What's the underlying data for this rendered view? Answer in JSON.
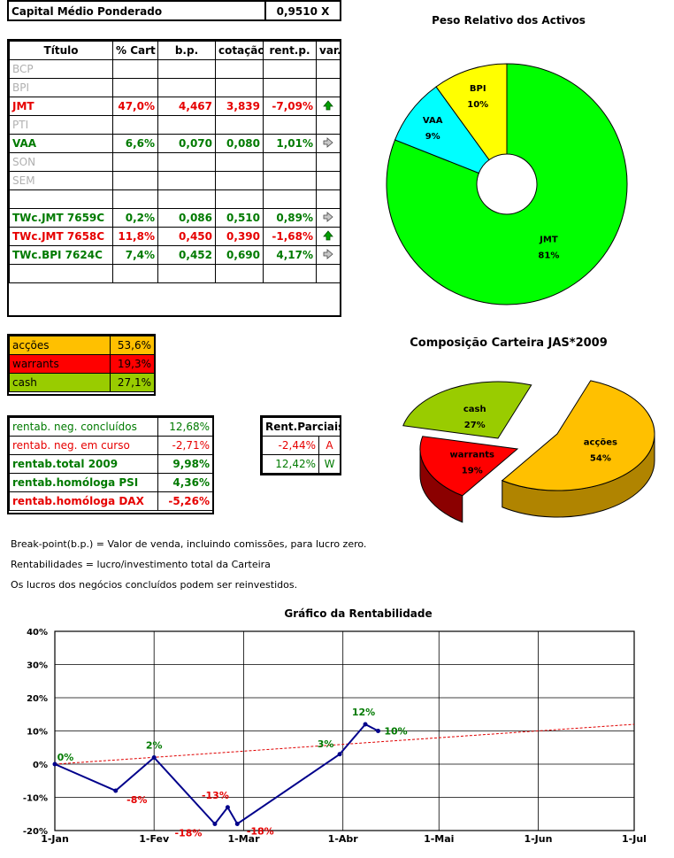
{
  "capital": {
    "label": "Capital Médio Ponderado",
    "value": "0,9510 X"
  },
  "holdings": {
    "headers": [
      "Título",
      "% Cart",
      "b.p.",
      "cotação",
      "rent.p.",
      "var."
    ],
    "rows": [
      {
        "title": "BCP",
        "cart": "",
        "bp": "",
        "cot": "",
        "rent": "",
        "var": "",
        "color": "gray"
      },
      {
        "title": "BPI",
        "cart": "",
        "bp": "",
        "cot": "",
        "rent": "",
        "var": "",
        "color": "gray"
      },
      {
        "title": "JMT",
        "cart": "47,0%",
        "bp": "4,467",
        "cot": "3,839",
        "rent": "-7,09%",
        "var": "up",
        "color": "red"
      },
      {
        "title": "PTI",
        "cart": "",
        "bp": "",
        "cot": "",
        "rent": "",
        "var": "",
        "color": "gray"
      },
      {
        "title": "VAA",
        "cart": "6,6%",
        "bp": "0,070",
        "cot": "0,080",
        "rent": "1,01%",
        "var": "right",
        "color": "green"
      },
      {
        "title": "SON",
        "cart": "",
        "bp": "",
        "cot": "",
        "rent": "",
        "var": "",
        "color": "gray"
      },
      {
        "title": "SEM",
        "cart": "",
        "bp": "",
        "cot": "",
        "rent": "",
        "var": "",
        "color": "gray"
      },
      {
        "title": "",
        "cart": "",
        "bp": "",
        "cot": "",
        "rent": "",
        "var": "",
        "color": "gray"
      },
      {
        "title": "TWc.JMT 7659C",
        "cart": "0,2%",
        "bp": "0,086",
        "cot": "0,510",
        "rent": "0,89%",
        "var": "right",
        "color": "green"
      },
      {
        "title": "TWc.JMT 7658C",
        "cart": "11,8%",
        "bp": "0,450",
        "cot": "0,390",
        "rent": "-1,68%",
        "var": "up",
        "color": "red"
      },
      {
        "title": "TWc.BPI 7624C",
        "cart": "7,4%",
        "bp": "0,452",
        "cot": "0,690",
        "rent": "4,17%",
        "var": "right",
        "color": "green"
      },
      {
        "title": "",
        "cart": "",
        "bp": "",
        "cot": "",
        "rent": "",
        "var": "",
        "color": "gray"
      }
    ]
  },
  "allocation": [
    {
      "label": "acções",
      "value": "53,6%",
      "bg": "#ffc000"
    },
    {
      "label": "warrants",
      "value": "19,3%",
      "bg": "#ff0000"
    },
    {
      "label": "cash",
      "value": "27,1%",
      "bg": "#99cc00"
    }
  ],
  "returns": [
    {
      "label": "rentab. neg. concluídos",
      "value": "12,68%",
      "color": "green",
      "bold": false
    },
    {
      "label": "rentab. neg. em curso",
      "value": "-2,71%",
      "color": "red",
      "bold": false
    },
    {
      "label": "rentab.total 2009",
      "value": "9,98%",
      "color": "green",
      "bold": true
    },
    {
      "label": "rentab.homóloga PSI",
      "value": "4,36%",
      "color": "green",
      "bold": true
    },
    {
      "label": "rentab.homóloga DAX",
      "value": "-5,26%",
      "color": "red",
      "bold": true
    }
  ],
  "partial": {
    "header": "Rent.Parciais",
    "rows": [
      {
        "value": "-2,44%",
        "tag": "A",
        "color": "red"
      },
      {
        "value": "12,42%",
        "tag": "W",
        "color": "green"
      }
    ]
  },
  "notes": [
    "Break-point(b.p.) = Valor de venda, incluindo comissões, para lucro zero.",
    "Rentabilidades = lucro/investimento total da Carteira",
    "Os lucros dos negócios concluídos podem ser reinvestidos."
  ],
  "chart_data": [
    {
      "type": "pie",
      "title": "Peso Relativo dos Activos",
      "slices": [
        {
          "label": "JMT",
          "value": 81,
          "text": "81%",
          "color": "#00ff00"
        },
        {
          "label": "VAA",
          "value": 9,
          "text": "9%",
          "color": "#00ffff"
        },
        {
          "label": "BPI",
          "value": 10,
          "text": "10%",
          "color": "#ffff00"
        }
      ]
    },
    {
      "type": "pie",
      "title": "Composição Carteira JAS*2009",
      "slices": [
        {
          "label": "acções",
          "value": 54,
          "text": "54%",
          "color": "#ffc000",
          "side": "#b08400"
        },
        {
          "label": "warrants",
          "value": 19,
          "text": "19%",
          "color": "#ff0000",
          "side": "#8b0000"
        },
        {
          "label": "cash",
          "value": 27,
          "text": "27%",
          "color": "#99cc00",
          "side": "#6b8e00"
        }
      ]
    },
    {
      "type": "line",
      "title": "Gráfico da Rentabilidade",
      "x_ticks": [
        "1-Jan",
        "1-Fev",
        "1-Mar",
        "1-Abr",
        "1-Mai",
        "1-Jun",
        "1-Jul"
      ],
      "y_ticks": [
        "-20%",
        "-10%",
        "0%",
        "10%",
        "20%",
        "30%",
        "40%"
      ],
      "ylim": [
        -20,
        40
      ],
      "series": [
        {
          "points": [
            {
              "x": "2009-01-01",
              "y": 0,
              "label": "0%",
              "labelColor": "#007a00"
            },
            {
              "x": "2009-01-20",
              "y": -8,
              "label": "-8%",
              "labelColor": "#e60000"
            },
            {
              "x": "2009-02-01",
              "y": 2,
              "label": "2%",
              "labelColor": "#007a00"
            },
            {
              "x": "2009-02-20",
              "y": -18,
              "label": "-18%",
              "labelColor": "#e60000"
            },
            {
              "x": "2009-02-24",
              "y": -13,
              "label": "-13%",
              "labelColor": "#e60000"
            },
            {
              "x": "2009-02-27",
              "y": -18,
              "label": "-18%",
              "labelColor": "#e60000"
            },
            {
              "x": "2009-03-31",
              "y": 3,
              "label": "3%",
              "labelColor": "#007a00"
            },
            {
              "x": "2009-04-08",
              "y": 12,
              "label": "12%",
              "labelColor": "#007a00"
            },
            {
              "x": "2009-04-12",
              "y": 10,
              "label": "10%",
              "labelColor": "#007a00"
            }
          ]
        }
      ],
      "trendline": {
        "from": {
          "x": "2009-01-01",
          "y": 0
        },
        "to": {
          "x": "2009-07-01",
          "y": 12
        }
      }
    }
  ]
}
